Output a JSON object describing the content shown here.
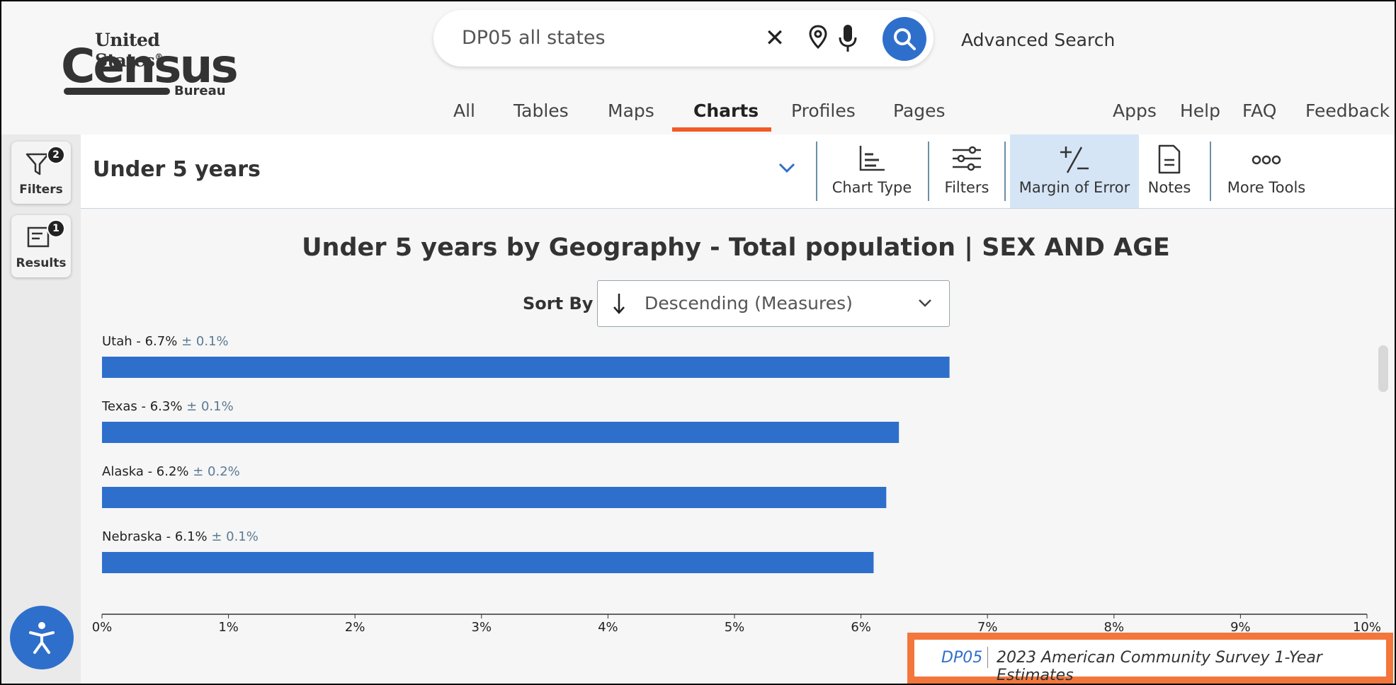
{
  "logo": {
    "top": "United States",
    "reg": "®",
    "main": "Census",
    "bottom": "Bureau"
  },
  "search": {
    "value": "DP05 all states",
    "advanced_label": "Advanced Search",
    "clear_glyph": "✕"
  },
  "nav": {
    "tabs": [
      {
        "label": "All"
      },
      {
        "label": "Tables"
      },
      {
        "label": "Maps"
      },
      {
        "label": "Charts",
        "active": true
      },
      {
        "label": "Profiles"
      },
      {
        "label": "Pages"
      }
    ],
    "right": [
      {
        "label": "Apps"
      },
      {
        "label": "Help"
      },
      {
        "label": "FAQ"
      },
      {
        "label": "Feedback"
      }
    ]
  },
  "rail": {
    "filters": {
      "label": "Filters",
      "badge": "2"
    },
    "results": {
      "label": "Results",
      "badge": "1"
    }
  },
  "toolbar": {
    "variable": "Under 5 years",
    "buttons": {
      "chart_type": "Chart Type",
      "filters": "Filters",
      "margin_of_error": "Margin of Error",
      "notes": "Notes",
      "more_tools": "More Tools"
    }
  },
  "sort": {
    "label": "Sort By",
    "value": "Descending (Measures)"
  },
  "chart_data": {
    "type": "bar",
    "orientation": "horizontal",
    "title": "Under 5 years by Geography - Total population | SEX AND AGE",
    "categories": [
      "Utah",
      "Texas",
      "Alaska",
      "Nebraska"
    ],
    "values": [
      6.7,
      6.3,
      6.2,
      6.1
    ],
    "margins": [
      "± 0.1%",
      "± 0.1%",
      "± 0.2%",
      "± 0.1%"
    ],
    "value_labels": [
      "Utah - 6.7%",
      "Texas - 6.3%",
      "Alaska - 6.2%",
      "Nebraska - 6.1%"
    ],
    "xlim": [
      0,
      10
    ],
    "xticks": [
      "0%",
      "1%",
      "2%",
      "3%",
      "4%",
      "5%",
      "6%",
      "7%",
      "8%",
      "9%",
      "10%"
    ],
    "bar_color": "#2f6fcc",
    "moe_color": "#5b7a94",
    "grid": false
  },
  "source": {
    "table_id": "DP05",
    "dataset": "2023 American Community Survey 1-Year Estimates"
  },
  "colors": {
    "accent": "#2f6fcc",
    "highlight": "#f3763c",
    "nav_underline": "#f05a28",
    "moe_bg": "#d6e5f6"
  }
}
